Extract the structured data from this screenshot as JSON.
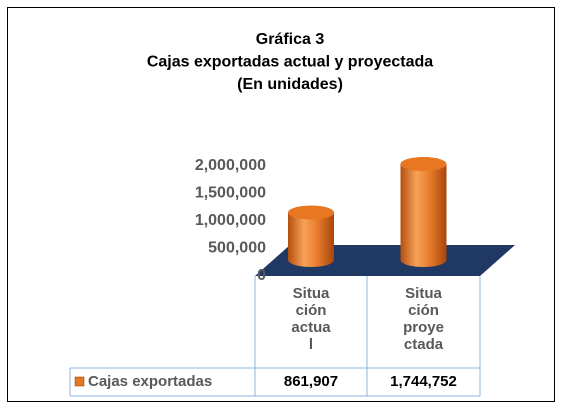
{
  "chart_data": {
    "type": "bar",
    "title": [
      "Gráfica 3",
      "Cajas exportadas actual y proyectada",
      "(En unidades)"
    ],
    "categories": [
      "Situación actual",
      "Situación proyectada"
    ],
    "series": [
      {
        "name": "Cajas exportadas",
        "color": "#e87722",
        "values": [
          861907,
          1744752
        ],
        "value_labels": [
          "861,907",
          "1,744,752"
        ]
      }
    ],
    "ylim": [
      0,
      2000000
    ],
    "yticks": [
      0,
      {
        "value": 500000,
        "label": "500,000"
      },
      {
        "value": 1000000,
        "label": "1,000,000"
      },
      {
        "value": 1500000,
        "label": "1,500,000"
      },
      {
        "value": 2000000,
        "label": "2,000,000"
      }
    ]
  }
}
